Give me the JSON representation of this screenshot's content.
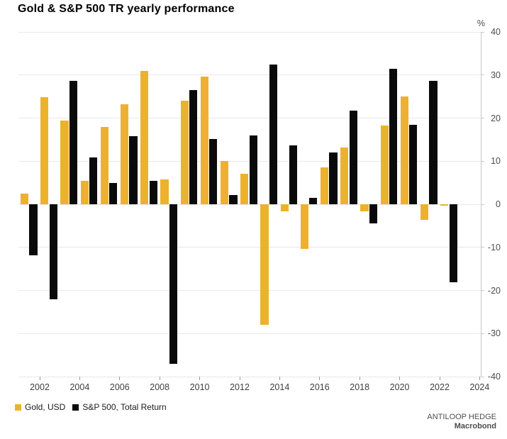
{
  "title": "Gold & S&P 500 TR yearly performance",
  "colors": {
    "gold": "#ECB22F",
    "sp500": "#0A0A0A",
    "gridline": "#E8E8E8",
    "axis_line": "#C9C9C9",
    "tick_mark": "#9B9B9B",
    "axis_text": "#404040",
    "background": "#FFFFFF"
  },
  "y_axis": {
    "unit": "%",
    "ticks": [
      40,
      30,
      20,
      10,
      0,
      -10,
      -20,
      -30,
      -40
    ],
    "min": -40,
    "max": 40
  },
  "x_axis": {
    "tick_labels": [
      "2002",
      "2004",
      "2006",
      "2008",
      "2010",
      "2012",
      "2014",
      "2016",
      "2018",
      "2020",
      "2022",
      "2024"
    ]
  },
  "legend": {
    "items": [
      {
        "label": "Gold, USD",
        "color": "#ECB22F"
      },
      {
        "label": "S&P 500, Total Return",
        "color": "#0A0A0A"
      }
    ]
  },
  "branding": {
    "line1": "ANTILOOP HEDGE",
    "line2": "Macrobond"
  },
  "chart_data": {
    "type": "bar",
    "title": "Gold & S&P 500 TR yearly performance",
    "categories": [
      2001,
      2002,
      2003,
      2004,
      2005,
      2006,
      2007,
      2008,
      2009,
      2010,
      2011,
      2012,
      2013,
      2014,
      2015,
      2016,
      2017,
      2018,
      2019,
      2020,
      2021,
      2022
    ],
    "series": [
      {
        "name": "Gold, USD",
        "color": "#ECB22F",
        "values": [
          2.5,
          24.8,
          19.4,
          5.5,
          17.9,
          23.2,
          31.0,
          5.8,
          24.0,
          29.6,
          10.1,
          7.1,
          -28.0,
          -1.7,
          -10.4,
          8.6,
          13.1,
          -1.6,
          18.3,
          25.1,
          -3.6,
          -0.3
        ]
      },
      {
        "name": "S&P 500, Total Return",
        "color": "#0A0A0A",
        "values": [
          -11.9,
          -22.1,
          28.7,
          10.9,
          4.9,
          15.8,
          5.5,
          -37.0,
          26.5,
          15.1,
          2.1,
          16.0,
          32.4,
          13.7,
          1.4,
          12.0,
          21.8,
          -4.4,
          31.5,
          18.4,
          28.7,
          -18.1
        ]
      }
    ],
    "ylabel": "%",
    "ylim": [
      -40,
      40
    ],
    "x_domain": [
      2001,
      2024
    ],
    "grid": true,
    "legend_position": "bottom-left"
  }
}
